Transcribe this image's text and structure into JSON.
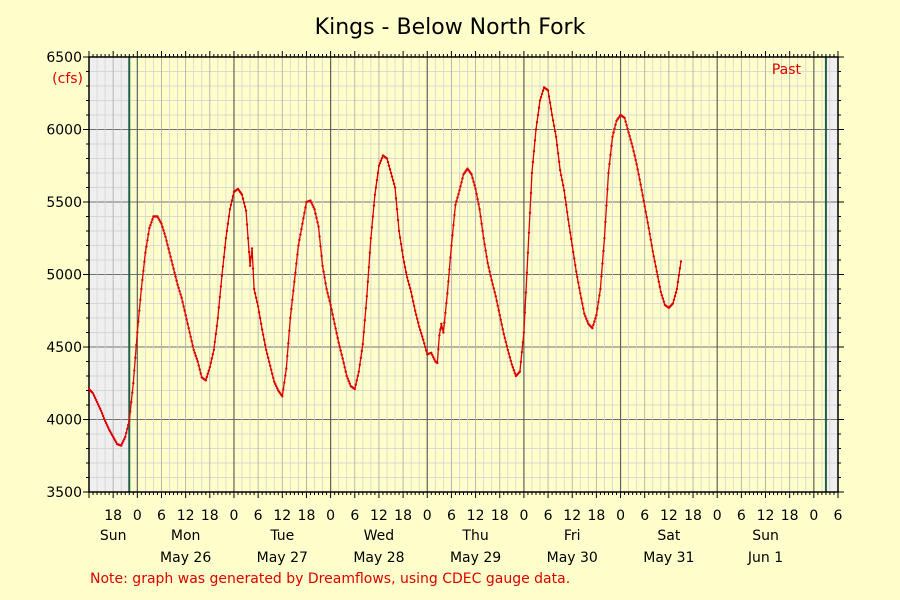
{
  "chart_data": {
    "type": "line",
    "title": "Kings - Below North Fork",
    "ylabel": "(cfs)",
    "ylim": [
      3500,
      6500
    ],
    "yticks": [
      3500,
      4000,
      4500,
      5000,
      5500,
      6000,
      6500
    ],
    "grid": true,
    "past_label": "Past",
    "note": "Note: graph was generated by Dreamflows, using CDEC gauge data.",
    "x_unit": "hours since 2024-05-25 12:00 (Sun)",
    "xlim": [
      0,
      186
    ],
    "past_start_x": 10,
    "past_end_x": 183,
    "hour_ticks": [
      {
        "x": 6,
        "label": "18"
      },
      {
        "x": 12,
        "label": "0"
      },
      {
        "x": 18,
        "label": "6"
      },
      {
        "x": 24,
        "label": "12"
      },
      {
        "x": 30,
        "label": "18"
      },
      {
        "x": 36,
        "label": "0"
      },
      {
        "x": 42,
        "label": "6"
      },
      {
        "x": 48,
        "label": "12"
      },
      {
        "x": 54,
        "label": "18"
      },
      {
        "x": 60,
        "label": "0"
      },
      {
        "x": 66,
        "label": "6"
      },
      {
        "x": 72,
        "label": "12"
      },
      {
        "x": 78,
        "label": "18"
      },
      {
        "x": 84,
        "label": "0"
      },
      {
        "x": 90,
        "label": "6"
      },
      {
        "x": 96,
        "label": "12"
      },
      {
        "x": 102,
        "label": "18"
      },
      {
        "x": 108,
        "label": "0"
      },
      {
        "x": 114,
        "label": "6"
      },
      {
        "x": 120,
        "label": "12"
      },
      {
        "x": 126,
        "label": "18"
      },
      {
        "x": 132,
        "label": "0"
      },
      {
        "x": 138,
        "label": "6"
      },
      {
        "x": 144,
        "label": "12"
      },
      {
        "x": 150,
        "label": "18"
      },
      {
        "x": 156,
        "label": "0"
      },
      {
        "x": 162,
        "label": "6"
      },
      {
        "x": 168,
        "label": "12"
      },
      {
        "x": 174,
        "label": "18"
      },
      {
        "x": 180,
        "label": "0"
      },
      {
        "x": 186,
        "label": "6"
      }
    ],
    "day_labels": [
      {
        "x": 6,
        "day": "Sun",
        "date": ""
      },
      {
        "x": 24,
        "day": "Mon",
        "date": "May 26"
      },
      {
        "x": 48,
        "day": "Tue",
        "date": "May 27"
      },
      {
        "x": 72,
        "day": "Wed",
        "date": "May 28"
      },
      {
        "x": 96,
        "day": "Thu",
        "date": "May 29"
      },
      {
        "x": 120,
        "day": "Fri",
        "date": "May 30"
      },
      {
        "x": 144,
        "day": "Sat",
        "date": "May 31"
      },
      {
        "x": 168,
        "day": "Sun",
        "date": "Jun 1"
      }
    ],
    "series": [
      {
        "name": "Flow",
        "color": "#dd0000",
        "points": [
          [
            0,
            4210
          ],
          [
            1,
            4180
          ],
          [
            2,
            4120
          ],
          [
            3,
            4060
          ],
          [
            4,
            3990
          ],
          [
            5,
            3930
          ],
          [
            6,
            3880
          ],
          [
            7,
            3830
          ],
          [
            8,
            3820
          ],
          [
            9,
            3880
          ],
          [
            10,
            3990
          ],
          [
            11,
            4250
          ],
          [
            12,
            4600
          ],
          [
            13,
            4900
          ],
          [
            14,
            5150
          ],
          [
            15,
            5320
          ],
          [
            16,
            5400
          ],
          [
            17,
            5400
          ],
          [
            18,
            5350
          ],
          [
            19,
            5260
          ],
          [
            20,
            5150
          ],
          [
            21,
            5040
          ],
          [
            22,
            4930
          ],
          [
            23,
            4840
          ],
          [
            24,
            4720
          ],
          [
            25,
            4600
          ],
          [
            26,
            4480
          ],
          [
            27,
            4400
          ],
          [
            28,
            4290
          ],
          [
            29,
            4270
          ],
          [
            30,
            4360
          ],
          [
            31,
            4480
          ],
          [
            32,
            4700
          ],
          [
            33,
            4990
          ],
          [
            34,
            5250
          ],
          [
            35,
            5450
          ],
          [
            36,
            5570
          ],
          [
            37,
            5590
          ],
          [
            38,
            5550
          ],
          [
            39,
            5440
          ],
          [
            40,
            5060
          ],
          [
            40.5,
            5180
          ],
          [
            41,
            4900
          ],
          [
            42,
            4780
          ],
          [
            43,
            4620
          ],
          [
            44,
            4480
          ],
          [
            45,
            4370
          ],
          [
            46,
            4260
          ],
          [
            47,
            4200
          ],
          [
            48,
            4160
          ],
          [
            49,
            4350
          ],
          [
            50,
            4700
          ],
          [
            51,
            4950
          ],
          [
            52,
            5200
          ],
          [
            53,
            5350
          ],
          [
            54,
            5500
          ],
          [
            55,
            5510
          ],
          [
            56,
            5450
          ],
          [
            57,
            5330
          ],
          [
            58,
            5060
          ],
          [
            59,
            4900
          ],
          [
            60,
            4790
          ],
          [
            61,
            4660
          ],
          [
            62,
            4530
          ],
          [
            63,
            4420
          ],
          [
            64,
            4300
          ],
          [
            65,
            4230
          ],
          [
            66,
            4210
          ],
          [
            67,
            4330
          ],
          [
            68,
            4520
          ],
          [
            69,
            4850
          ],
          [
            70,
            5250
          ],
          [
            71,
            5550
          ],
          [
            72,
            5750
          ],
          [
            73,
            5820
          ],
          [
            74,
            5800
          ],
          [
            75,
            5700
          ],
          [
            76,
            5600
          ],
          [
            77,
            5300
          ],
          [
            78,
            5120
          ],
          [
            79,
            4980
          ],
          [
            80,
            4880
          ],
          [
            81,
            4750
          ],
          [
            82,
            4640
          ],
          [
            83,
            4550
          ],
          [
            84,
            4450
          ],
          [
            85,
            4460
          ],
          [
            86,
            4400
          ],
          [
            86.5,
            4390
          ],
          [
            87,
            4580
          ],
          [
            87.5,
            4660
          ],
          [
            88,
            4600
          ],
          [
            89,
            4870
          ],
          [
            90,
            5200
          ],
          [
            91,
            5480
          ],
          [
            92,
            5580
          ],
          [
            93,
            5690
          ],
          [
            94,
            5730
          ],
          [
            95,
            5690
          ],
          [
            96,
            5590
          ],
          [
            97,
            5450
          ],
          [
            98,
            5250
          ],
          [
            99,
            5080
          ],
          [
            100,
            4960
          ],
          [
            101,
            4850
          ],
          [
            102,
            4720
          ],
          [
            103,
            4590
          ],
          [
            104,
            4480
          ],
          [
            105,
            4380
          ],
          [
            106,
            4300
          ],
          [
            107,
            4330
          ],
          [
            108,
            4600
          ],
          [
            109,
            5150
          ],
          [
            110,
            5700
          ],
          [
            111,
            6000
          ],
          [
            112,
            6200
          ],
          [
            113,
            6290
          ],
          [
            114,
            6270
          ],
          [
            115,
            6100
          ],
          [
            116,
            5950
          ],
          [
            117,
            5720
          ],
          [
            118,
            5580
          ],
          [
            119,
            5380
          ],
          [
            120,
            5200
          ],
          [
            121,
            5020
          ],
          [
            122,
            4870
          ],
          [
            123,
            4730
          ],
          [
            124,
            4660
          ],
          [
            125,
            4630
          ],
          [
            126,
            4720
          ],
          [
            127,
            4900
          ],
          [
            128,
            5250
          ],
          [
            129,
            5700
          ],
          [
            130,
            5950
          ],
          [
            131,
            6060
          ],
          [
            132,
            6100
          ],
          [
            133,
            6080
          ],
          [
            134,
            5980
          ],
          [
            135,
            5880
          ],
          [
            136,
            5760
          ],
          [
            137,
            5620
          ],
          [
            138,
            5470
          ],
          [
            139,
            5320
          ],
          [
            140,
            5160
          ],
          [
            141,
            5020
          ],
          [
            142,
            4880
          ],
          [
            143,
            4790
          ],
          [
            144,
            4770
          ],
          [
            145,
            4800
          ],
          [
            146,
            4900
          ],
          [
            147,
            5090
          ]
        ]
      }
    ]
  }
}
